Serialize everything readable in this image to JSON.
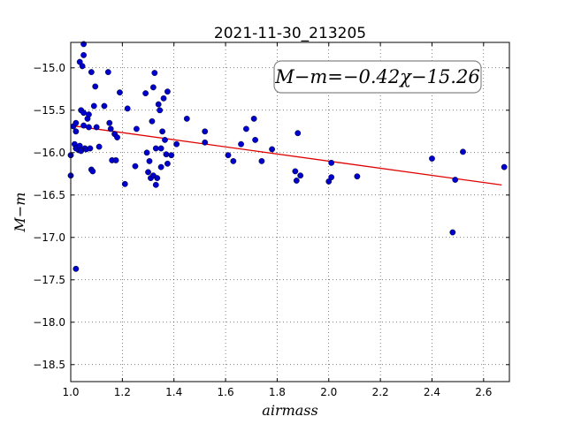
{
  "chart_data": {
    "type": "scatter",
    "title": "2021-11-30_213205",
    "xlabel": "airmass",
    "ylabel": "M−m",
    "xlim": [
      1.0,
      2.7
    ],
    "ylim": [
      -18.7,
      -14.7
    ],
    "y_inverted": true,
    "grid": true,
    "x_ticks": [
      1.0,
      1.2,
      1.4,
      1.6,
      1.8,
      2.0,
      2.2,
      2.4,
      2.6
    ],
    "x_tick_labels": [
      "1.0",
      "1.2",
      "1.4",
      "1.6",
      "1.8",
      "2.0",
      "2.2",
      "2.4",
      "2.6"
    ],
    "y_ticks": [
      -15.0,
      -15.5,
      -16.0,
      -16.5,
      -17.0,
      -17.5,
      -18.0,
      -18.5
    ],
    "y_tick_labels": [
      "−15.0",
      "−15.5",
      "−16.0",
      "−16.5",
      "−17.0",
      "−17.5",
      "−18.0",
      "−18.5"
    ],
    "annotation": "M−m=−0.42χ−15.26",
    "fit": {
      "slope": -0.42,
      "intercept": -15.26,
      "x_range": [
        1.0,
        2.67
      ],
      "color": "#e00000"
    },
    "point_color": "#0000cc",
    "points": [
      [
        1.0,
        -16.03
      ],
      [
        1.0,
        -16.27
      ],
      [
        1.01,
        -15.69
      ],
      [
        1.015,
        -15.9
      ],
      [
        1.02,
        -15.95
      ],
      [
        1.02,
        -15.65
      ],
      [
        1.02,
        -15.75
      ],
      [
        1.02,
        -17.37
      ],
      [
        1.03,
        -15.97
      ],
      [
        1.035,
        -15.92
      ],
      [
        1.035,
        -14.93
      ],
      [
        1.04,
        -15.5
      ],
      [
        1.04,
        -15.98
      ],
      [
        1.045,
        -14.98
      ],
      [
        1.05,
        -14.72
      ],
      [
        1.05,
        -14.85
      ],
      [
        1.05,
        -15.53
      ],
      [
        1.05,
        -15.68
      ],
      [
        1.055,
        -15.95
      ],
      [
        1.06,
        -15.96
      ],
      [
        1.065,
        -15.6
      ],
      [
        1.07,
        -15.55
      ],
      [
        1.07,
        -15.7
      ],
      [
        1.075,
        -15.95
      ],
      [
        1.08,
        -15.05
      ],
      [
        1.08,
        -16.2
      ],
      [
        1.085,
        -16.22
      ],
      [
        1.09,
        -15.45
      ],
      [
        1.095,
        -15.22
      ],
      [
        1.1,
        -15.7
      ],
      [
        1.11,
        -15.93
      ],
      [
        1.13,
        -15.45
      ],
      [
        1.145,
        -15.05
      ],
      [
        1.15,
        -15.65
      ],
      [
        1.155,
        -15.72
      ],
      [
        1.16,
        -16.09
      ],
      [
        1.17,
        -15.78
      ],
      [
        1.175,
        -16.09
      ],
      [
        1.18,
        -15.82
      ],
      [
        1.19,
        -15.29
      ],
      [
        1.21,
        -16.37
      ],
      [
        1.22,
        -15.48
      ],
      [
        1.25,
        -16.16
      ],
      [
        1.255,
        -15.72
      ],
      [
        1.29,
        -15.3
      ],
      [
        1.295,
        -16.0
      ],
      [
        1.3,
        -16.23
      ],
      [
        1.305,
        -16.1
      ],
      [
        1.31,
        -16.3
      ],
      [
        1.315,
        -15.63
      ],
      [
        1.32,
        -15.23
      ],
      [
        1.32,
        -16.27
      ],
      [
        1.325,
        -15.06
      ],
      [
        1.33,
        -16.38
      ],
      [
        1.33,
        -15.95
      ],
      [
        1.335,
        -16.3
      ],
      [
        1.34,
        -15.43
      ],
      [
        1.345,
        -15.5
      ],
      [
        1.35,
        -15.95
      ],
      [
        1.35,
        -16.17
      ],
      [
        1.355,
        -15.75
      ],
      [
        1.36,
        -15.36
      ],
      [
        1.365,
        -15.85
      ],
      [
        1.37,
        -16.02
      ],
      [
        1.375,
        -15.28
      ],
      [
        1.375,
        -16.13
      ],
      [
        1.39,
        -16.03
      ],
      [
        1.41,
        -15.9
      ],
      [
        1.45,
        -15.6
      ],
      [
        1.52,
        -15.75
      ],
      [
        1.52,
        -15.88
      ],
      [
        1.61,
        -16.03
      ],
      [
        1.63,
        -16.1
      ],
      [
        1.66,
        -15.9
      ],
      [
        1.68,
        -15.72
      ],
      [
        1.71,
        -15.6
      ],
      [
        1.715,
        -15.85
      ],
      [
        1.74,
        -16.1
      ],
      [
        1.78,
        -15.96
      ],
      [
        1.87,
        -16.22
      ],
      [
        1.875,
        -16.33
      ],
      [
        1.88,
        -15.77
      ],
      [
        1.89,
        -16.27
      ],
      [
        2.0,
        -16.34
      ],
      [
        2.01,
        -16.12
      ],
      [
        2.01,
        -16.29
      ],
      [
        2.11,
        -16.28
      ],
      [
        2.4,
        -16.07
      ],
      [
        2.48,
        -16.94
      ],
      [
        2.49,
        -16.32
      ],
      [
        2.52,
        -15.99
      ],
      [
        2.68,
        -16.17
      ]
    ]
  }
}
